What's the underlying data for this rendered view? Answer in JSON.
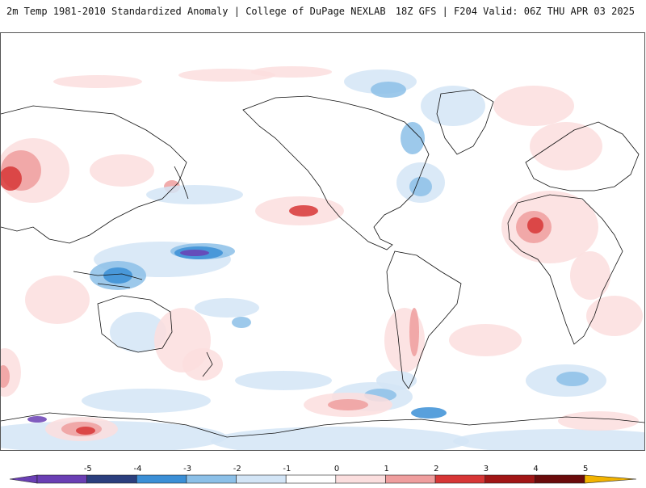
{
  "header": {
    "left_title": "2m Temp 1981-2010 Standardized Anomaly | College of DuPage NEXLAB",
    "right_title": "18Z GFS | F204 Valid: 06Z THU APR 03 2025"
  },
  "legend": {
    "ticks": [
      "-5",
      "-4",
      "-3",
      "-2",
      "-1",
      "0",
      "1",
      "2",
      "3",
      "4",
      "5"
    ],
    "bins": [
      {
        "color": "#6a3fb4"
      },
      {
        "color": "#2b3f7e"
      },
      {
        "color": "#3b8fd6"
      },
      {
        "color": "#8cc0e8"
      },
      {
        "color": "#d3e5f6"
      },
      {
        "color": "#ffffff"
      },
      {
        "color": "#fbdede"
      },
      {
        "color": "#ef9e9e"
      },
      {
        "color": "#d73636"
      },
      {
        "color": "#a11616"
      },
      {
        "color": "#6a0b0b"
      }
    ],
    "overflow_low_color": "#6a3fb4",
    "overflow_high_color": "#f2b300"
  },
  "colors": {
    "light_blue": "#d3e5f6",
    "mid_blue": "#8cc0e8",
    "deep_blue": "#3b8fd6",
    "purple": "#6a3fb4",
    "light_red": "#fbdede",
    "mid_red": "#ef9e9e",
    "deep_red": "#d73636",
    "dark_red": "#a11616",
    "coast": "#111111"
  }
}
